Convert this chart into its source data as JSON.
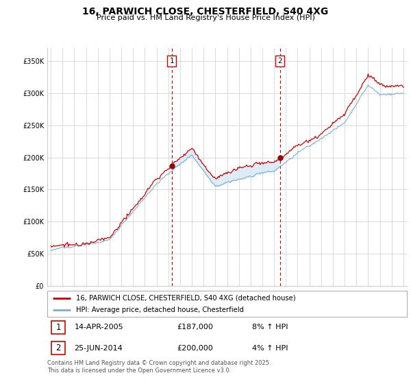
{
  "title": "16, PARWICH CLOSE, CHESTERFIELD, S40 4XG",
  "subtitle": "Price paid vs. HM Land Registry's House Price Index (HPI)",
  "line1_label": "16, PARWICH CLOSE, CHESTERFIELD, S40 4XG (detached house)",
  "line2_label": "HPI: Average price, detached house, Chesterfield",
  "line1_color": "#cc0000",
  "line2_color": "#7ab0d4",
  "fill_color": "#d6e8f5",
  "ylim": [
    0,
    370000
  ],
  "yticks": [
    0,
    50000,
    100000,
    150000,
    200000,
    250000,
    300000,
    350000
  ],
  "sale1_x": 2005.29,
  "sale1_y": 187000,
  "sale2_x": 2014.5,
  "sale2_y": 200000,
  "sale1_date": "14-APR-2005",
  "sale1_price": "£187,000",
  "sale1_hpi": "8% ↑ HPI",
  "sale2_date": "25-JUN-2014",
  "sale2_price": "£200,000",
  "sale2_hpi": "4% ↑ HPI",
  "footer": "Contains HM Land Registry data © Crown copyright and database right 2025.\nThis data is licensed under the Open Government Licence v3.0.",
  "bg_color": "#ffffff",
  "grid_color": "#cccccc",
  "xlim_left": 1994.7,
  "xlim_right": 2025.3
}
